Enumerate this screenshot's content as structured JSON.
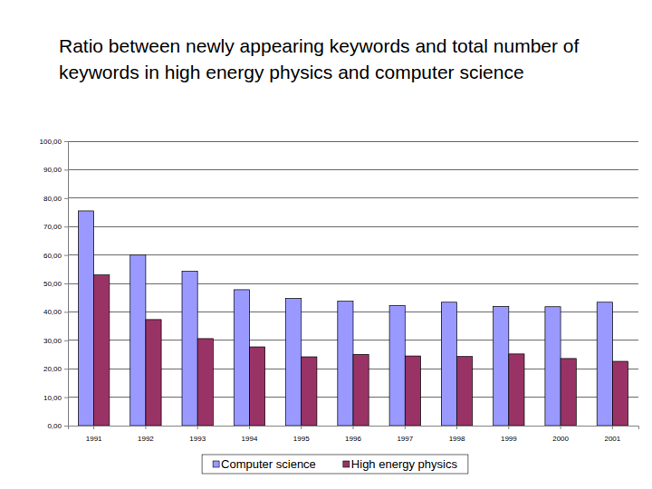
{
  "chart_data": {
    "type": "bar",
    "title": "Ratio between newly appearing keywords and total number of keywords in high energy physics and computer science",
    "categories": [
      "1991",
      "1992",
      "1993",
      "1994",
      "1995",
      "1996",
      "1997",
      "1998",
      "1999",
      "2000",
      "2001"
    ],
    "series": [
      {
        "name": "Computer science",
        "color": "#9999ff",
        "values": [
          75.5,
          60.0,
          54.3,
          47.8,
          44.7,
          43.8,
          42.2,
          43.4,
          41.9,
          41.8,
          43.4
        ]
      },
      {
        "name": "High energy physics",
        "color": "#993366",
        "values": [
          53.0,
          37.3,
          30.6,
          27.7,
          24.2,
          25.0,
          24.5,
          24.3,
          25.2,
          23.6,
          22.6
        ]
      }
    ],
    "ylim": [
      0,
      100
    ],
    "yticks": [
      {
        "value": 0,
        "label": "0,00"
      },
      {
        "value": 10,
        "label": "10,00"
      },
      {
        "value": 20,
        "label": "20,00"
      },
      {
        "value": 30,
        "label": "30,00"
      },
      {
        "value": 40,
        "label": "40,00"
      },
      {
        "value": 50,
        "label": "50,00"
      },
      {
        "value": 60,
        "label": "60,00"
      },
      {
        "value": 70,
        "label": "70,00"
      },
      {
        "value": 80,
        "label": "80,00"
      },
      {
        "value": 90,
        "label": "90,00"
      },
      {
        "value": 100,
        "label": "100,00"
      }
    ],
    "grid": true,
    "legend": "bottom"
  }
}
